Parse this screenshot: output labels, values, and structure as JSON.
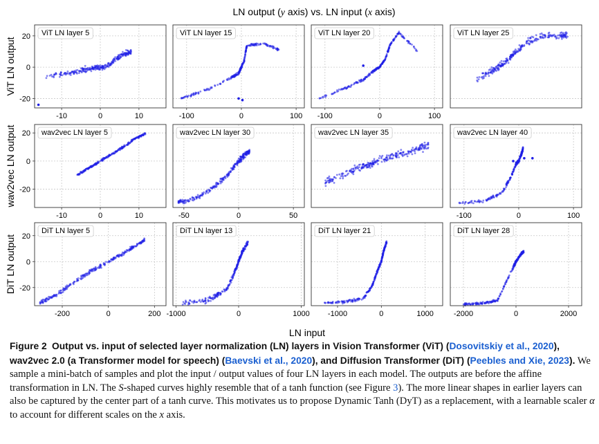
{
  "figure": {
    "title_text": "LN output (y axis) vs. LN input (x axis)",
    "xlabel": "LN input",
    "row_ylabels": [
      "ViT LN output",
      "wav2vec LN output",
      "DiT LN output"
    ]
  },
  "colors": {
    "points": "#1f1fe6",
    "grid": "#c8c8c8",
    "frame": "#333333"
  },
  "chart_data": [
    {
      "type": "scatter",
      "title": "ViT LN layer 5",
      "xlim": [
        -17,
        17
      ],
      "ylim": [
        -26,
        27
      ],
      "xticks": [
        -10,
        0,
        10
      ],
      "yticks": [
        -20,
        0,
        20
      ],
      "show_yticks": true,
      "shape": [
        [
          -14,
          -6
        ],
        [
          -9,
          -4
        ],
        [
          -5,
          -2
        ],
        [
          -2,
          -0.8
        ],
        [
          0,
          0
        ],
        [
          2,
          0.8
        ],
        [
          4,
          5
        ],
        [
          6,
          8
        ],
        [
          8,
          10
        ]
      ],
      "spread": 2.5,
      "outliers": [
        [
          -16,
          -24
        ]
      ]
    },
    {
      "type": "scatter",
      "title": "ViT LN layer 15",
      "xlim": [
        -125,
        115
      ],
      "ylim": [
        -26,
        27
      ],
      "xticks": [
        -100,
        0,
        100
      ],
      "yticks": [
        -20,
        0,
        20
      ],
      "show_yticks": false,
      "shape": [
        [
          -110,
          -20
        ],
        [
          -60,
          -14
        ],
        [
          -20,
          -7
        ],
        [
          -5,
          -4
        ],
        [
          0,
          0
        ],
        [
          5,
          4
        ],
        [
          10,
          14
        ],
        [
          40,
          15
        ],
        [
          70,
          11
        ]
      ],
      "spread": 1.2,
      "outliers": [
        [
          -5,
          -20
        ],
        [
          2,
          -21
        ]
      ]
    },
    {
      "type": "scatter",
      "title": "ViT LN layer 20",
      "xlim": [
        -125,
        115
      ],
      "ylim": [
        -26,
        27
      ],
      "xticks": [
        -100,
        0,
        100
      ],
      "yticks": [
        -20,
        0,
        20
      ],
      "show_yticks": false,
      "shape": [
        [
          -110,
          -20
        ],
        [
          -60,
          -13
        ],
        [
          -30,
          -8
        ],
        [
          -10,
          -2
        ],
        [
          0,
          0
        ],
        [
          10,
          5
        ],
        [
          20,
          15
        ],
        [
          35,
          22
        ],
        [
          70,
          10
        ]
      ],
      "spread": 1.0,
      "outliers": [
        [
          -30,
          1
        ],
        [
          15,
          10
        ]
      ]
    },
    {
      "type": "scatter",
      "title": "ViT LN layer 25",
      "xlim": [
        -55,
        95
      ],
      "ylim": [
        -26,
        27
      ],
      "xticks": [],
      "yticks": [
        -20,
        0,
        20
      ],
      "show_yticks": false,
      "shape": [
        [
          -25,
          -8
        ],
        [
          -10,
          -3
        ],
        [
          0,
          0
        ],
        [
          10,
          4
        ],
        [
          20,
          10
        ],
        [
          35,
          17
        ],
        [
          50,
          20
        ],
        [
          70,
          20
        ],
        [
          80,
          20
        ]
      ],
      "spread": 3.0,
      "outliers": []
    },
    {
      "type": "scatter",
      "title": "wav2vec LN layer 5",
      "xlim": [
        -17,
        17
      ],
      "ylim": [
        -33,
        26
      ],
      "xticks": [
        -10,
        0,
        10
      ],
      "yticks": [
        -20,
        0,
        20
      ],
      "show_yticks": true,
      "shape": [
        [
          -6,
          -10
        ],
        [
          -3,
          -5
        ],
        [
          0,
          0
        ],
        [
          3,
          5
        ],
        [
          6,
          10
        ],
        [
          9,
          16
        ],
        [
          12,
          20
        ]
      ],
      "spread": 1.0,
      "outliers": []
    },
    {
      "type": "scatter",
      "title": "wav2vec LN layer 30",
      "xlim": [
        -60,
        60
      ],
      "ylim": [
        -33,
        26
      ],
      "xticks": [
        -50,
        0,
        50
      ],
      "yticks": [
        -20,
        0,
        20
      ],
      "show_yticks": false,
      "shape": [
        [
          -55,
          -29
        ],
        [
          -40,
          -27
        ],
        [
          -25,
          -20
        ],
        [
          -10,
          -10
        ],
        [
          0,
          0
        ],
        [
          5,
          4
        ],
        [
          10,
          7
        ]
      ],
      "spread": 2.5,
      "outliers": []
    },
    {
      "type": "scatter",
      "title": "wav2vec LN layer 35",
      "xlim": [
        -140,
        140
      ],
      "ylim": [
        -33,
        26
      ],
      "xticks": [],
      "yticks": [
        -20,
        0,
        20
      ],
      "show_yticks": false,
      "shape": [
        [
          -110,
          -15
        ],
        [
          -60,
          -8
        ],
        [
          -20,
          -3
        ],
        [
          0,
          0
        ],
        [
          40,
          4
        ],
        [
          80,
          8
        ],
        [
          110,
          11
        ]
      ],
      "spread": 4.0,
      "outliers": []
    },
    {
      "type": "scatter",
      "title": "wav2vec LN layer 40",
      "xlim": [
        -125,
        115
      ],
      "ylim": [
        -33,
        26
      ],
      "xticks": [
        -100,
        0,
        100
      ],
      "yticks": [
        -20,
        0,
        20
      ],
      "show_yticks": false,
      "shape": [
        [
          -110,
          -30
        ],
        [
          -60,
          -28
        ],
        [
          -30,
          -22
        ],
        [
          -15,
          -12
        ],
        [
          -5,
          -2
        ],
        [
          0,
          0
        ],
        [
          5,
          5
        ],
        [
          8,
          9
        ]
      ],
      "spread": 1.5,
      "outliers": [
        [
          -10,
          0
        ],
        [
          10,
          2
        ],
        [
          25,
          2
        ]
      ]
    },
    {
      "type": "scatter",
      "title": "DiT LN layer 5",
      "xlim": [
        -320,
        250
      ],
      "ylim": [
        -34,
        30
      ],
      "xticks": [
        -200,
        0,
        200
      ],
      "yticks": [
        -20,
        0,
        20
      ],
      "show_yticks": true,
      "shape": [
        [
          -300,
          -32
        ],
        [
          -220,
          -25
        ],
        [
          -100,
          -10
        ],
        [
          0,
          0
        ],
        [
          80,
          8
        ],
        [
          160,
          17
        ]
      ],
      "spread": 2.0,
      "outliers": []
    },
    {
      "type": "scatter",
      "title": "DiT LN layer 13",
      "xlim": [
        -1050,
        1050
      ],
      "ylim": [
        -34,
        30
      ],
      "xticks": [
        -1000,
        0,
        1000
      ],
      "yticks": [
        -20,
        0,
        20
      ],
      "show_yticks": false,
      "shape": [
        [
          -900,
          -32
        ],
        [
          -500,
          -30
        ],
        [
          -200,
          -22
        ],
        [
          -80,
          -10
        ],
        [
          0,
          0
        ],
        [
          60,
          8
        ],
        [
          150,
          15
        ]
      ],
      "spread": 2.5,
      "outliers": []
    },
    {
      "type": "scatter",
      "title": "DiT LN layer 21",
      "xlim": [
        -1600,
        1400
      ],
      "ylim": [
        -34,
        30
      ],
      "xticks": [
        -1000,
        0,
        1000
      ],
      "yticks": [
        -20,
        0,
        20
      ],
      "show_yticks": false,
      "shape": [
        [
          -1300,
          -32
        ],
        [
          -800,
          -31
        ],
        [
          -400,
          -28
        ],
        [
          -200,
          -18
        ],
        [
          -100,
          -8
        ],
        [
          0,
          0
        ],
        [
          50,
          8
        ],
        [
          120,
          15
        ]
      ],
      "spread": 1.5,
      "outliers": []
    },
    {
      "type": "scatter",
      "title": "DiT LN layer 28",
      "xlim": [
        -2500,
        2500
      ],
      "ylim": [
        -34,
        30
      ],
      "xticks": [
        -2000,
        0,
        2000
      ],
      "yticks": [
        -20,
        0,
        20
      ],
      "show_yticks": false,
      "shape": [
        [
          -2000,
          -33
        ],
        [
          -1200,
          -32
        ],
        [
          -700,
          -30
        ],
        [
          -100,
          -4
        ],
        [
          0,
          0
        ],
        [
          200,
          6
        ],
        [
          300,
          8
        ]
      ],
      "spread": 1.5,
      "outliers": []
    }
  ],
  "caption": {
    "label": "Figure 2",
    "bold_1": "Output vs. input of selected layer normalization (LN) layers in Vision Transformer (ViT) (",
    "cite_1": "Dosovitskiy et al., 2020",
    "bold_2": "), wav2vec 2.0 (a Transformer model for speech) (",
    "cite_2": "Baevski et al., 2020",
    "bold_3": "), and Diffusion Transformer (DiT) (",
    "cite_3": "Peebles and Xie, 2023",
    "bold_4": ").",
    "body_1": "We sample a mini-batch of samples and plot the input / output values of four LN layers in each model. The outputs are before the affine transformation in LN. The ",
    "body_s": "S",
    "body_2": "-shaped curves highly resemble that of a tanh function (see Figure ",
    "body_fig": "3",
    "body_3": "). The more linear shapes in earlier layers can also be captured by the center part of a tanh curve. This motivates us to propose Dynamic Tanh (DyT) as a replacement, with a learnable scaler ",
    "body_alpha": "α",
    "body_4": " to account for different scales on the ",
    "body_x": "x",
    "body_5": " axis."
  }
}
